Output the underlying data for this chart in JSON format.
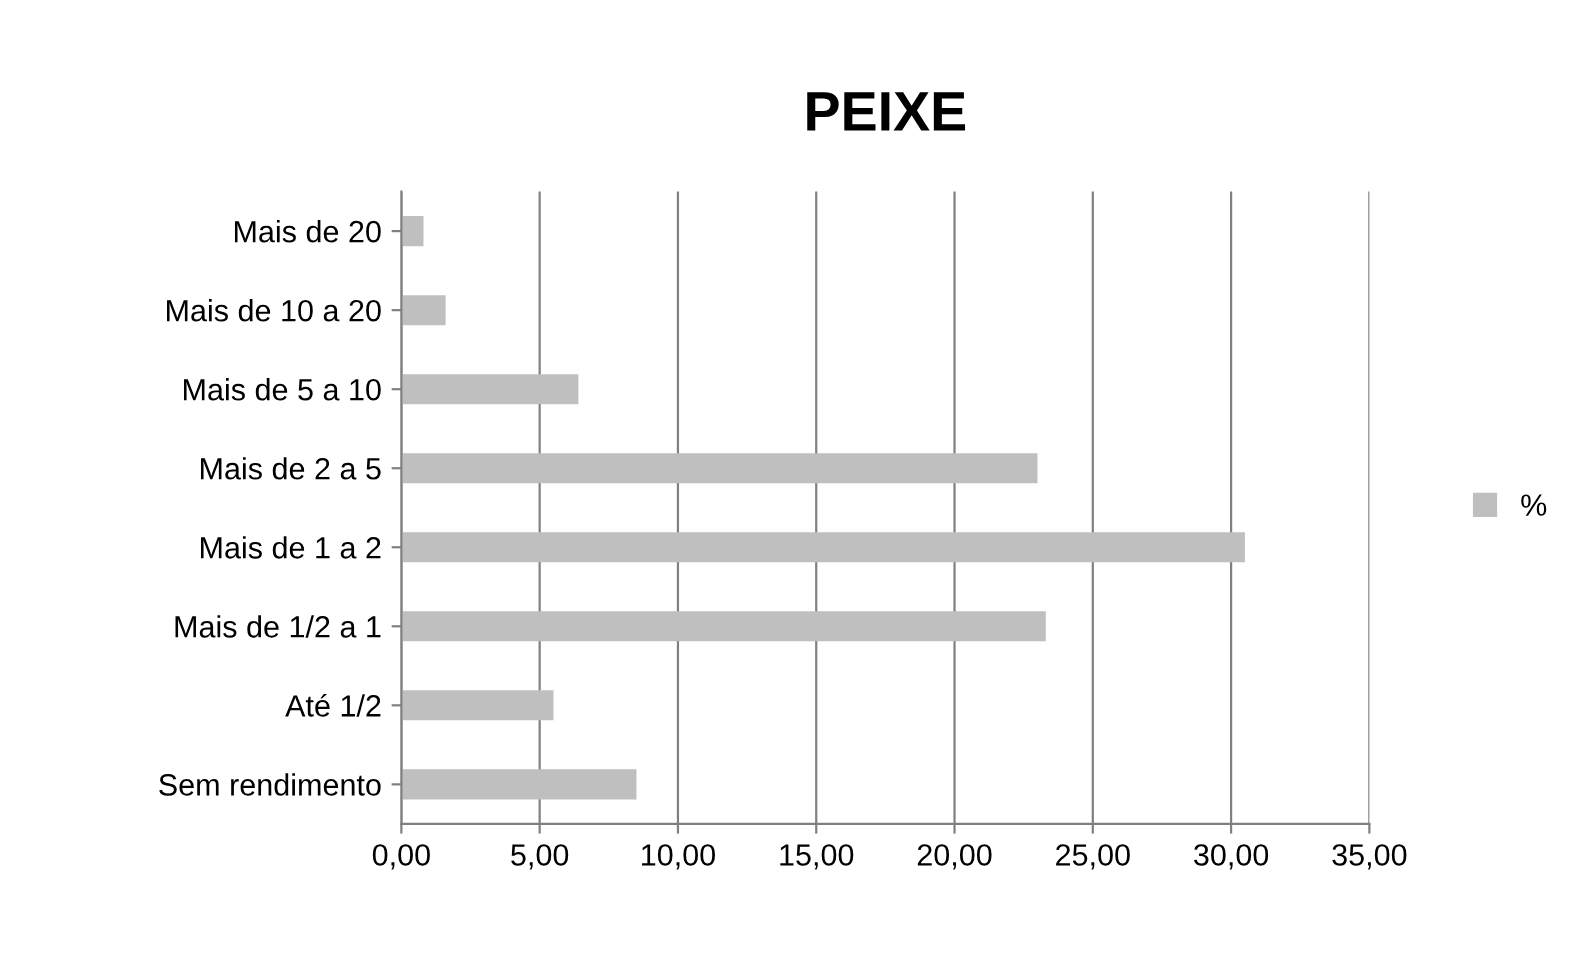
{
  "chart_data": {
    "type": "bar",
    "orientation": "horizontal",
    "title": "PEIXE",
    "categories": [
      "Mais de 20",
      "Mais de 10 a 20",
      "Mais de 5 a 10",
      "Mais de 2 a 5",
      "Mais de 1 a 2",
      "Mais de 1/2 a 1",
      "Até 1/2",
      "Sem rendimento"
    ],
    "series": [
      {
        "name": "%",
        "color": "#bfbfbf",
        "values": [
          0.8,
          1.6,
          6.4,
          23.0,
          30.5,
          23.3,
          5.5,
          8.5
        ]
      }
    ],
    "xlim": [
      0,
      35
    ],
    "xticks": [
      {
        "value": 0,
        "label": "0,00"
      },
      {
        "value": 5,
        "label": "5,00"
      },
      {
        "value": 10,
        "label": "10,00"
      },
      {
        "value": 15,
        "label": "15,00"
      },
      {
        "value": 20,
        "label": "20,00"
      },
      {
        "value": 25,
        "label": "25,00"
      },
      {
        "value": 30,
        "label": "30,00"
      },
      {
        "value": 35,
        "label": "35,00"
      }
    ],
    "grid": "x",
    "legend": "right"
  }
}
